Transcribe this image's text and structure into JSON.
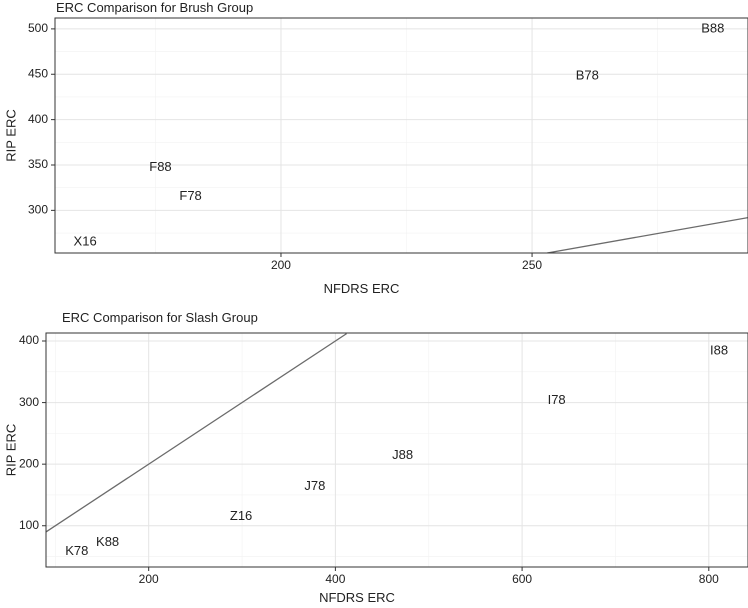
{
  "chart_data": [
    {
      "type": "scatter",
      "title": "ERC Comparison for Brush Group",
      "xlabel": "NFDRS ERC",
      "ylabel": "RIP ERC",
      "xlim": [
        155,
        293
      ],
      "ylim": [
        253,
        512
      ],
      "xticks": [
        200,
        250
      ],
      "yticks": [
        300,
        350,
        400,
        450,
        500
      ],
      "grid": true,
      "points": [
        {
          "label": "X16",
          "x": 161,
          "y": 265
        },
        {
          "label": "F78",
          "x": 182,
          "y": 315
        },
        {
          "label": "F88",
          "x": 176,
          "y": 347
        },
        {
          "label": "B78",
          "x": 261,
          "y": 448
        },
        {
          "label": "B88",
          "x": 286,
          "y": 500
        }
      ],
      "reference_line": [
        [
          253,
          253
        ],
        [
          293,
          292
        ]
      ]
    },
    {
      "type": "scatter",
      "title": "ERC Comparison for Slash Group",
      "xlabel": "NFDRS ERC",
      "ylabel": "RIP ERC",
      "xlim": [
        90,
        842
      ],
      "ylim": [
        33,
        413
      ],
      "xticks": [
        200,
        400,
        600,
        800
      ],
      "yticks": [
        100,
        200,
        300,
        400
      ],
      "grid": true,
      "points": [
        {
          "label": "K78",
          "x": 123,
          "y": 58
        },
        {
          "label": "K88",
          "x": 156,
          "y": 73
        },
        {
          "label": "Z16",
          "x": 299,
          "y": 115
        },
        {
          "label": "J78",
          "x": 378,
          "y": 164
        },
        {
          "label": "J88",
          "x": 472,
          "y": 214
        },
        {
          "label": "I78",
          "x": 637,
          "y": 303
        },
        {
          "label": "I88",
          "x": 811,
          "y": 384
        }
      ],
      "reference_line": [
        [
          90,
          90
        ],
        [
          412,
          412
        ]
      ]
    }
  ]
}
